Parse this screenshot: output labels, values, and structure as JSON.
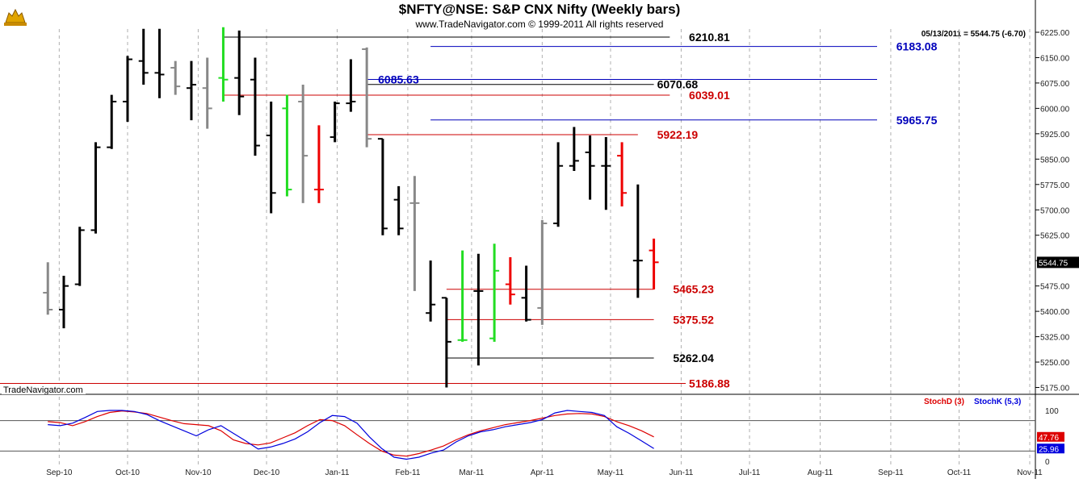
{
  "header": {
    "title": "$NFTY@NSE:  S&P CNX Nifty  (Weekly bars)",
    "copyright": "www.TradeNavigator.com © 1999-2011 All rights reserved",
    "last_quote": "05/13/2011 = 5544.75 (-6.70)",
    "brand_label": "TradeNavigator.com",
    "logo_icon": "bull-logo-icon"
  },
  "chart_data": [
    {
      "type": "ohlc",
      "title": "$NFTY@NSE:  S&P CNX Nifty  (Weekly bars)",
      "ylim": [
        5150,
        6250
      ],
      "y_ticks": [
        "6225.00",
        "6150.00",
        "6075.00",
        "6000.00",
        "5925.00",
        "5850.00",
        "5775.00",
        "5700.00",
        "5625.00",
        "5550.00",
        "5475.00",
        "5400.00",
        "5325.00",
        "5250.00",
        "5175.00"
      ],
      "x_ticks": [
        "Sep-10",
        "Oct-10",
        "Nov-10",
        "Dec-10",
        "Jan-11",
        "Feb-11",
        "Mar-11",
        "Apr-11",
        "May-11",
        "Jun-11",
        "Jul-11",
        "Aug-11",
        "Sep-11",
        "Oct-11",
        "Nov-11"
      ],
      "last_price_label": "5544.75",
      "colors": {
        "up": "#000000",
        "down_week": "#ee0000",
        "gray": "#888888",
        "green": "#22dd22"
      },
      "bars": [
        {
          "date": "2010-08-27",
          "open": 5455,
          "high": 5545,
          "low": 5390,
          "close": 5405,
          "color": "gray"
        },
        {
          "date": "2010-09-03",
          "open": 5405,
          "high": 5505,
          "low": 5350,
          "close": 5475,
          "color": "black"
        },
        {
          "date": "2010-09-10",
          "open": 5480,
          "high": 5650,
          "low": 5475,
          "close": 5640,
          "color": "black"
        },
        {
          "date": "2010-09-17",
          "open": 5640,
          "high": 5900,
          "low": 5630,
          "close": 5885,
          "color": "black"
        },
        {
          "date": "2010-09-24",
          "open": 5885,
          "high": 6040,
          "low": 5880,
          "close": 6020,
          "color": "black"
        },
        {
          "date": "2010-10-01",
          "open": 6020,
          "high": 6155,
          "low": 5960,
          "close": 6145,
          "color": "black"
        },
        {
          "date": "2010-10-08",
          "open": 6140,
          "high": 6235,
          "low": 6070,
          "close": 6105,
          "color": "black"
        },
        {
          "date": "2010-10-15",
          "open": 6105,
          "high": 6235,
          "low": 6030,
          "close": 6100,
          "color": "black"
        },
        {
          "date": "2010-10-22",
          "open": 6120,
          "high": 6140,
          "low": 6040,
          "close": 6065,
          "color": "gray"
        },
        {
          "date": "2010-10-29",
          "open": 6060,
          "high": 6140,
          "low": 5965,
          "close": 6070,
          "color": "black"
        },
        {
          "date": "2010-11-05",
          "open": 6060,
          "high": 6150,
          "low": 5940,
          "close": 6000,
          "color": "gray"
        },
        {
          "date": "2010-11-12",
          "open": 6090,
          "high": 6240,
          "low": 6020,
          "close": 6085,
          "color": "green"
        },
        {
          "date": "2010-11-19",
          "open": 6090,
          "high": 6230,
          "low": 5980,
          "close": 6035,
          "color": "black"
        },
        {
          "date": "2010-11-26",
          "open": 6085,
          "high": 6150,
          "low": 5860,
          "close": 5890,
          "color": "black"
        },
        {
          "date": "2010-12-03",
          "open": 5920,
          "high": 6020,
          "low": 5690,
          "close": 5750,
          "color": "black"
        },
        {
          "date": "2010-12-10",
          "open": 6000,
          "high": 6040,
          "low": 5740,
          "close": 5760,
          "color": "green"
        },
        {
          "date": "2010-12-17",
          "open": 6020,
          "high": 6070,
          "low": 5720,
          "close": 5860,
          "color": "gray"
        },
        {
          "date": "2010-12-24",
          "open": 5760,
          "high": 5950,
          "low": 5720,
          "close": 5760,
          "color": "red"
        },
        {
          "date": "2010-12-31",
          "open": 5915,
          "high": 6020,
          "low": 5900,
          "close": 6015,
          "color": "black"
        },
        {
          "date": "2011-01-07",
          "open": 6015,
          "high": 6145,
          "low": 5990,
          "close": 6020,
          "color": "black"
        },
        {
          "date": "2011-01-14",
          "open": 6175,
          "high": 6180,
          "low": 5885,
          "close": 5910,
          "color": "gray"
        },
        {
          "date": "2011-01-21",
          "open": 5910,
          "high": 5910,
          "low": 5625,
          "close": 5645,
          "color": "black"
        },
        {
          "date": "2011-01-28",
          "open": 5730,
          "high": 5770,
          "low": 5625,
          "close": 5645,
          "color": "black"
        },
        {
          "date": "2011-02-04",
          "open": 5720,
          "high": 5800,
          "low": 5460,
          "close": 5720,
          "color": "gray"
        },
        {
          "date": "2011-02-11",
          "open": 5395,
          "high": 5550,
          "low": 5370,
          "close": 5420,
          "color": "black"
        },
        {
          "date": "2011-02-18",
          "open": 5440,
          "high": 5440,
          "low": 5175,
          "close": 5310,
          "color": "black"
        },
        {
          "date": "2011-02-25",
          "open": 5315,
          "high": 5580,
          "low": 5310,
          "close": 5315,
          "color": "green"
        },
        {
          "date": "2011-03-04",
          "open": 5460,
          "high": 5570,
          "low": 5240,
          "close": 5460,
          "color": "black"
        },
        {
          "date": "2011-03-11",
          "open": 5320,
          "high": 5600,
          "low": 5310,
          "close": 5520,
          "color": "green"
        },
        {
          "date": "2011-03-18",
          "open": 5480,
          "high": 5560,
          "low": 5420,
          "close": 5450,
          "color": "red"
        },
        {
          "date": "2011-03-25",
          "open": 5440,
          "high": 5535,
          "low": 5370,
          "close": 5375,
          "color": "black"
        },
        {
          "date": "2011-04-01",
          "open": 5410,
          "high": 5670,
          "low": 5360,
          "close": 5660,
          "color": "gray"
        },
        {
          "date": "2011-04-08",
          "open": 5660,
          "high": 5900,
          "low": 5650,
          "close": 5830,
          "color": "black"
        },
        {
          "date": "2011-04-15",
          "open": 5830,
          "high": 5945,
          "low": 5815,
          "close": 5845,
          "color": "black"
        },
        {
          "date": "2011-04-22",
          "open": 5870,
          "high": 5920,
          "low": 5730,
          "close": 5830,
          "color": "black"
        },
        {
          "date": "2011-04-29",
          "open": 5830,
          "high": 5915,
          "low": 5700,
          "close": 5830,
          "color": "black"
        },
        {
          "date": "2011-05-06",
          "open": 5860,
          "high": 5900,
          "low": 5710,
          "close": 5750,
          "color": "red"
        },
        {
          "date": "2011-05-13",
          "open": 5550,
          "high": 5775,
          "low": 5440,
          "close": 5550,
          "color": "black"
        },
        {
          "date": "2011-05-20",
          "open": 5580,
          "high": 5615,
          "low": 5465,
          "close": 5545,
          "color": "red"
        }
      ],
      "levels": [
        {
          "label": "6210.81",
          "value": 6210.81,
          "color": "#000000",
          "x_from": "2010-11-12",
          "x_to": "2011-05-27",
          "text_at": "2011-06-03"
        },
        {
          "label": "6183.08",
          "value": 6183.08,
          "color": "#0000bb",
          "x_from": "2011-02-11",
          "x_to": "2011-08-26",
          "text_at": "2011-09-02"
        },
        {
          "label": "6085.63",
          "value": 6085.63,
          "color": "#0000bb",
          "x_from": "2011-01-14",
          "x_to": "2011-08-26",
          "text_at": "2011-01-14",
          "text_above": true
        },
        {
          "label": "6070.68",
          "value": 6070.68,
          "color": "#000000",
          "x_from": "2011-01-14",
          "x_to": "2011-05-20",
          "text_at": "2011-05-20"
        },
        {
          "label": "6039.01",
          "value": 6039.01,
          "color": "#cc0000",
          "x_from": "2010-11-12",
          "x_to": "2011-05-27",
          "text_at": "2011-06-03"
        },
        {
          "label": "5965.75",
          "value": 5965.75,
          "color": "#0000bb",
          "x_from": "2011-02-11",
          "x_to": "2011-08-26",
          "text_at": "2011-09-02"
        },
        {
          "label": "5922.19",
          "value": 5922.19,
          "color": "#cc0000",
          "x_from": "2011-01-14",
          "x_to": "2011-05-13",
          "text_at": "2011-05-20"
        },
        {
          "label": "5465.23",
          "value": 5465.23,
          "color": "#cc0000",
          "x_from": "2011-02-18",
          "x_to": "2011-05-20",
          "text_at": "2011-05-27"
        },
        {
          "label": "5375.52",
          "value": 5375.52,
          "color": "#cc0000",
          "x_from": "2011-02-18",
          "x_to": "2011-05-20",
          "text_at": "2011-05-27"
        },
        {
          "label": "5262.04",
          "value": 5262.04,
          "color": "#000000",
          "x_from": "2011-02-18",
          "x_to": "2011-05-20",
          "text_at": "2011-05-27"
        },
        {
          "label": "5186.88",
          "value": 5186.88,
          "color": "#cc0000",
          "x_from": "2010-08-06",
          "x_to": "2011-06-03",
          "text_at": "2011-06-03"
        }
      ]
    },
    {
      "type": "line",
      "ylim": [
        0,
        100
      ],
      "y_ticks": [
        "100",
        "50",
        "0"
      ],
      "ref_lines": [
        80,
        20
      ],
      "series": [
        {
          "name": "StochD (3)",
          "color": "#dd0000",
          "last_label": "47.76",
          "values": [
            78,
            76,
            70,
            78,
            88,
            96,
            99,
            97,
            94,
            87,
            80,
            74,
            72,
            70,
            60,
            42,
            35,
            32,
            36,
            46,
            56,
            70,
            82,
            80,
            70,
            52,
            35,
            20,
            12,
            10,
            15,
            22,
            30,
            42,
            52,
            60,
            66,
            72,
            76,
            80,
            85,
            90,
            93,
            94,
            93,
            88,
            78,
            70,
            60,
            48
          ]
        },
        {
          "name": "StochK (5,3)",
          "color": "#0000dd",
          "last_label": "25.96",
          "values": [
            72,
            70,
            75,
            86,
            98,
            100,
            100,
            98,
            92,
            80,
            70,
            60,
            50,
            62,
            70,
            55,
            40,
            24,
            28,
            35,
            44,
            58,
            76,
            90,
            88,
            75,
            48,
            25,
            8,
            4,
            8,
            16,
            22,
            38,
            50,
            58,
            62,
            68,
            72,
            76,
            82,
            95,
            100,
            98,
            96,
            90,
            68,
            55,
            40,
            25
          ]
        }
      ]
    }
  ]
}
